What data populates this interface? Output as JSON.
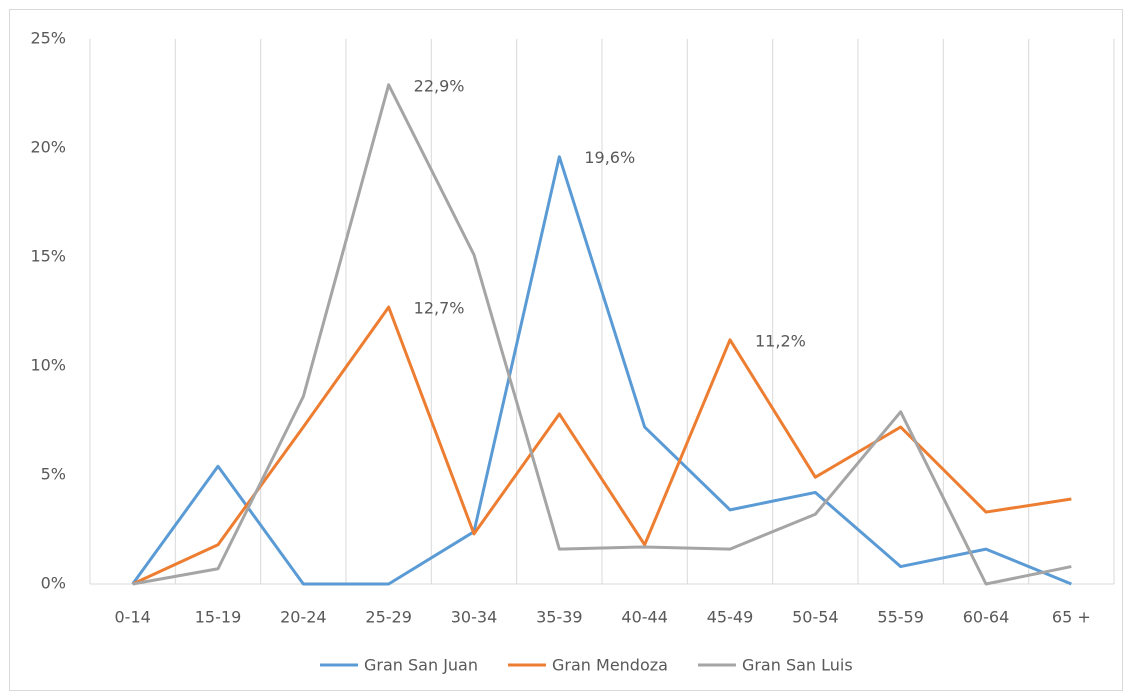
{
  "chart_data": {
    "type": "line",
    "categories": [
      "0-14",
      "15-19",
      "20-24",
      "25-29",
      "30-34",
      "35-39",
      "40-44",
      "45-49",
      "50-54",
      "55-59",
      "60-64",
      "65 +"
    ],
    "series": [
      {
        "name": "Gran San Juan",
        "color": "#5b9bd5",
        "values": [
          0,
          5.4,
          0,
          0,
          2.4,
          19.6,
          7.2,
          3.4,
          4.2,
          0.8,
          1.6,
          0
        ],
        "value_labels": [
          null,
          null,
          null,
          null,
          null,
          "19,6%",
          null,
          null,
          null,
          null,
          null,
          null
        ]
      },
      {
        "name": "Gran Mendoza",
        "color": "#ed7d31",
        "values": [
          0,
          1.8,
          7.2,
          12.7,
          2.3,
          7.8,
          1.8,
          11.2,
          4.9,
          7.2,
          3.3,
          3.9
        ],
        "value_labels": [
          null,
          null,
          null,
          "12,7%",
          null,
          null,
          null,
          "11,2%",
          null,
          null,
          null,
          null
        ]
      },
      {
        "name": "Gran San Luis",
        "color": "#a5a5a5",
        "values": [
          0,
          0.7,
          8.6,
          22.9,
          15.1,
          1.6,
          1.7,
          1.6,
          3.2,
          7.9,
          0,
          0.8
        ],
        "value_labels": [
          null,
          null,
          null,
          "22,9%",
          null,
          null,
          null,
          null,
          null,
          null,
          null,
          null
        ]
      }
    ],
    "ylim": [
      0,
      25
    ],
    "yticks": [
      {
        "value": 0,
        "label": "0%"
      },
      {
        "value": 5,
        "label": "5%"
      },
      {
        "value": 10,
        "label": "10%"
      },
      {
        "value": 15,
        "label": "15%"
      },
      {
        "value": 20,
        "label": "20%"
      },
      {
        "value": 25,
        "label": "25%"
      }
    ],
    "grid": true,
    "legend": "bottom"
  }
}
